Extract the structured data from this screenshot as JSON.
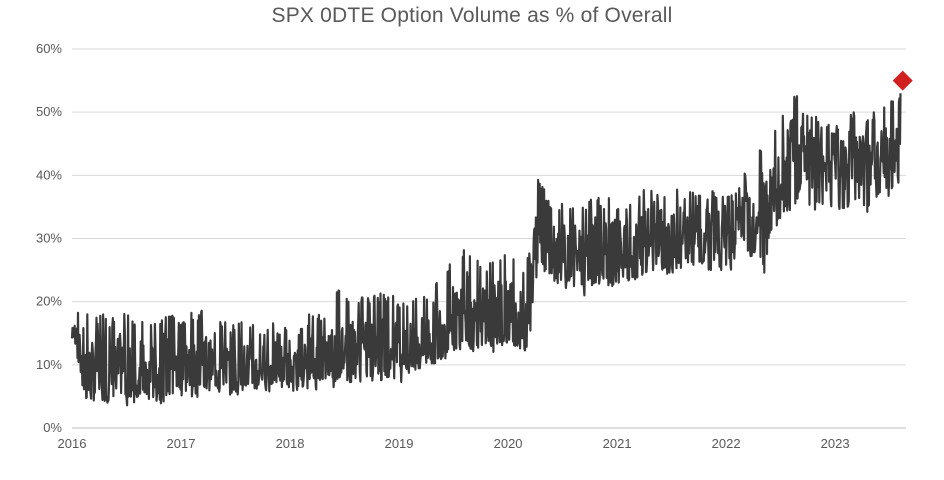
{
  "chart_data": {
    "type": "line",
    "title": "SPX 0DTE Option Volume as % of Overall",
    "xlabel": "",
    "ylabel": "",
    "x_range": [
      2016.0,
      2023.65
    ],
    "ylim": [
      0,
      60
    ],
    "x_tick_labels": [
      "2016",
      "2017",
      "2018",
      "2019",
      "2020",
      "2021",
      "2022",
      "2023"
    ],
    "x_tick_values": [
      2016,
      2017,
      2018,
      2019,
      2020,
      2021,
      2022,
      2023
    ],
    "y_tick_labels": [
      "0%",
      "10%",
      "20%",
      "30%",
      "40%",
      "50%",
      "60%"
    ],
    "y_tick_values": [
      0,
      10,
      20,
      30,
      40,
      50,
      60
    ],
    "grid": "horizontal",
    "legend": "none",
    "colors": {
      "line": "#3a3a3a",
      "marker": "#d0201f",
      "grid": "#d9d9d9",
      "text": "#595959"
    },
    "series": [
      {
        "values_description_free": true,
        "x": [
          2016.0,
          2016.05,
          2016.1,
          2016.15,
          2016.2,
          2016.25,
          2016.3,
          2016.35,
          2016.4,
          2016.45,
          2016.5,
          2016.55,
          2016.6,
          2016.65,
          2016.7,
          2016.75,
          2016.8,
          2016.85,
          2016.9,
          2016.95,
          2017.0,
          2017.05,
          2017.1,
          2017.15,
          2017.2,
          2017.25,
          2017.3,
          2017.35,
          2017.4,
          2017.45,
          2017.5,
          2017.55,
          2017.6,
          2017.65,
          2017.7,
          2017.75,
          2017.8,
          2017.85,
          2017.9,
          2017.95,
          2018.0,
          2018.05,
          2018.1,
          2018.15,
          2018.2,
          2018.25,
          2018.3,
          2018.35,
          2018.4,
          2018.45,
          2018.5,
          2018.55,
          2018.6,
          2018.65,
          2018.7,
          2018.75,
          2018.8,
          2018.85,
          2018.9,
          2018.95,
          2019.0,
          2019.05,
          2019.1,
          2019.15,
          2019.2,
          2019.25,
          2019.3,
          2019.35,
          2019.4,
          2019.45,
          2019.5,
          2019.55,
          2019.6,
          2019.65,
          2019.7,
          2019.75,
          2019.8,
          2019.85,
          2019.9,
          2019.95,
          2020.0,
          2020.05,
          2020.1,
          2020.15,
          2020.2,
          2020.25,
          2020.3,
          2020.35,
          2020.4,
          2020.45,
          2020.5,
          2020.55,
          2020.6,
          2020.65,
          2020.7,
          2020.75,
          2020.8,
          2020.85,
          2020.9,
          2020.95,
          2021.0,
          2021.05,
          2021.1,
          2021.15,
          2021.2,
          2021.25,
          2021.3,
          2021.35,
          2021.4,
          2021.45,
          2021.5,
          2021.55,
          2021.6,
          2021.65,
          2021.7,
          2021.75,
          2021.8,
          2021.85,
          2021.9,
          2021.95,
          2022.0,
          2022.05,
          2022.1,
          2022.15,
          2022.2,
          2022.25,
          2022.3,
          2022.35,
          2022.4,
          2022.45,
          2022.5,
          2022.55,
          2022.6,
          2022.65,
          2022.7,
          2022.75,
          2022.8,
          2022.85,
          2022.9,
          2022.95,
          2023.0,
          2023.05,
          2023.1,
          2023.15,
          2023.2,
          2023.25,
          2023.3,
          2023.35,
          2023.4,
          2023.45,
          2023.5,
          2023.55,
          2023.6
        ],
        "values": [
          14,
          16,
          12,
          8,
          9,
          10,
          9,
          8,
          9,
          10,
          9,
          8,
          10,
          9,
          8,
          9,
          8,
          10,
          9,
          9,
          9,
          10,
          9,
          9,
          12,
          10,
          10,
          9,
          10,
          9,
          9,
          10,
          10,
          9,
          9,
          10,
          9,
          10,
          10,
          10,
          9,
          9,
          10,
          10,
          11,
          10,
          11,
          12,
          12,
          13,
          12,
          12,
          13,
          12,
          12,
          12,
          13,
          12,
          13,
          13,
          11,
          12,
          12,
          13,
          13,
          14,
          15,
          15,
          16,
          17,
          17,
          18,
          20,
          18,
          17,
          18,
          17,
          17,
          18,
          18,
          19,
          18,
          17,
          16,
          21,
          29,
          32,
          30,
          29,
          28,
          28,
          27,
          27,
          28,
          26,
          27,
          28,
          30,
          29,
          28,
          28,
          27,
          28,
          28,
          29,
          29,
          30,
          30,
          30,
          29,
          29,
          31,
          30,
          30,
          31,
          31,
          32,
          31,
          30,
          30,
          31,
          30,
          31,
          33,
          34,
          33,
          35,
          36,
          36,
          35,
          38,
          40,
          42,
          43,
          44,
          42,
          43,
          43,
          42,
          42,
          43,
          42,
          43,
          44,
          42,
          43,
          43,
          44,
          43,
          42,
          43,
          45,
          47
        ],
        "high": [
          16,
          18,
          17,
          19,
          18,
          18,
          18,
          17,
          18,
          18,
          19,
          17,
          18,
          17,
          16,
          17,
          17,
          18,
          18,
          18,
          17,
          18,
          19,
          17,
          20,
          17,
          16,
          17,
          17,
          16,
          17,
          17,
          17,
          17,
          16,
          16,
          16,
          17,
          16,
          17,
          15,
          15,
          16,
          17,
          19,
          18,
          18,
          20,
          22,
          22,
          21,
          20,
          21,
          21,
          21,
          21,
          21,
          22,
          21,
          22,
          19,
          20,
          20,
          21,
          22,
          21,
          23,
          24,
          24,
          26,
          26,
          25,
          29,
          28,
          27,
          26,
          26,
          27,
          27,
          27,
          29,
          27,
          26,
          26,
          28,
          41,
          39,
          37,
          36,
          35,
          36,
          36,
          35,
          36,
          36,
          36,
          37,
          38,
          38,
          37,
          36,
          36,
          36,
          37,
          37,
          38,
          38,
          37,
          37,
          37,
          37,
          38,
          38,
          37,
          38,
          38,
          38,
          38,
          37,
          37,
          38,
          37,
          38,
          40,
          42,
          43,
          45,
          44,
          46,
          48,
          50,
          52,
          53,
          53,
          51,
          50,
          50,
          49,
          49,
          48,
          48,
          48,
          49,
          50,
          50,
          49,
          50,
          50,
          50,
          51,
          52,
          52,
          53
        ],
        "low": [
          12,
          11,
          5,
          4,
          5,
          5,
          4,
          4,
          5,
          4,
          4,
          4,
          4,
          5,
          4,
          4,
          5,
          4,
          5,
          5,
          5,
          5,
          6,
          6,
          6,
          6,
          6,
          6,
          6,
          6,
          6,
          6,
          7,
          6,
          6,
          7,
          6,
          7,
          7,
          7,
          7,
          6,
          7,
          6,
          7,
          7,
          7,
          8,
          7,
          7,
          8,
          7,
          7,
          8,
          8,
          7,
          8,
          7,
          8,
          8,
          8,
          9,
          8,
          9,
          9,
          9,
          10,
          10,
          11,
          11,
          11,
          12,
          13,
          12,
          13,
          13,
          12,
          13,
          13,
          13,
          13,
          13,
          13,
          12,
          14,
          24,
          26,
          24,
          23,
          23,
          22,
          22,
          22,
          22,
          22,
          23,
          22,
          23,
          23,
          22,
          22,
          22,
          23,
          23,
          23,
          24,
          24,
          24,
          24,
          24,
          24,
          25,
          24,
          25,
          25,
          25,
          25,
          25,
          25,
          25,
          25,
          25,
          26,
          27,
          27,
          27,
          28,
          24,
          30,
          31,
          33,
          34,
          34,
          35,
          35,
          35,
          34,
          35,
          35,
          35,
          35,
          34,
          35,
          35,
          35,
          35,
          34,
          35,
          36,
          37,
          36,
          38,
          39
        ]
      }
    ],
    "last_point": {
      "x": 2023.62,
      "y": 55
    }
  }
}
